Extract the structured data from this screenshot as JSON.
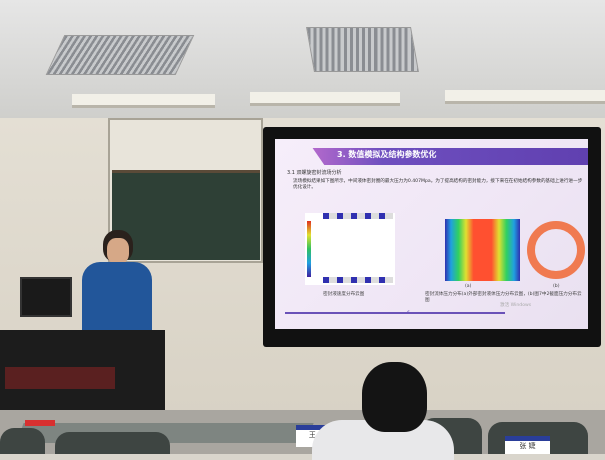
{
  "slide": {
    "title": "3. 数值模拟及结构参数优化",
    "subtitle": "3.1 双螺旋密封流场分析",
    "bullet": "流场模拟结果如下图所示，中间液体密封圈的最大压力为0.407Mpa。为了提高结构的密封能力，接下来在在初始结构参数的基础上进行进一步优化设计。",
    "caption_left": "密封液速度分布云图",
    "caption_right": "密封流体压力分布(a)外部密封液体压力分布云图，(b)图7中2截面压力分布云图",
    "label_a": "(a)",
    "label_b": "(b)",
    "page_number": "6",
    "watermark": "激活 Windows",
    "accent_color": "#6a4fbf"
  },
  "name_plates": [
    "王 宇",
    "张 婕"
  ]
}
